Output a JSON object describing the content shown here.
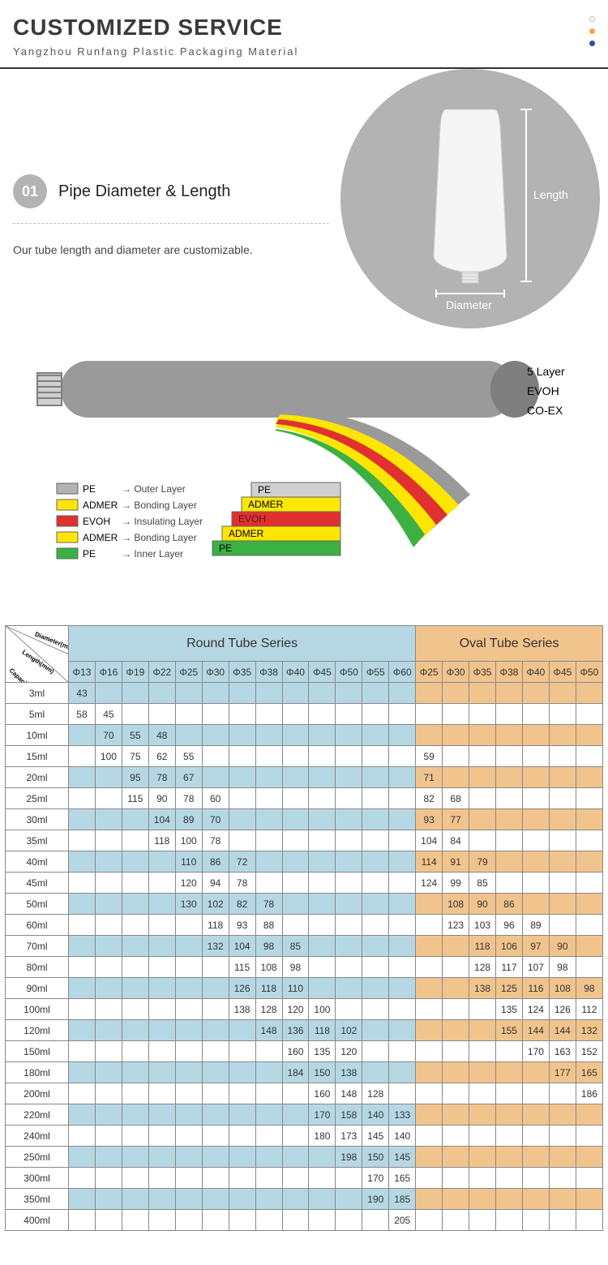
{
  "header": {
    "title": "CUSTOMIZED SERVICE",
    "subtitle": "Yangzhou Runfang Plastic Packaging Material",
    "dot_colors": [
      "#ffffff",
      "#f3a743",
      "#2a4ea7"
    ]
  },
  "section1": {
    "step_number": "01",
    "title": "Pipe Diameter & Length",
    "description": "Our tube length and diameter are customizable.",
    "labels": {
      "length": "Length",
      "diameter": "Diameter"
    },
    "colors": {
      "circle_bg": "#b3b3b3",
      "tube_fill": "#f2f2f2",
      "label_text": "#ffffff"
    }
  },
  "layers_diagram": {
    "right_labels": [
      "5 Layer",
      "EVOH",
      "CO-EX"
    ],
    "legend": [
      {
        "color": "#b3b3b3",
        "name": "PE",
        "desc": "Outer Layer"
      },
      {
        "color": "#ffe600",
        "name": "ADMER",
        "desc": "Bonding Layer"
      },
      {
        "color": "#e03030",
        "name": "EVOH",
        "desc": "Insulating Layer"
      },
      {
        "color": "#ffe600",
        "name": "ADMER",
        "desc": "Bonding Layer"
      },
      {
        "color": "#3cb043",
        "name": "PE",
        "desc": "Inner Layer"
      }
    ],
    "stack_labels": [
      "PE",
      "ADMER",
      "EVOH",
      "ADMER",
      "PE"
    ],
    "tube_color": "#9a9a9a"
  },
  "table": {
    "corner_labels": [
      "Diameter(mm)",
      "Length(mm)",
      "Capacity(ml)"
    ],
    "round_series_title": "Round Tube Series",
    "oval_series_title": "Oval Tube Series",
    "round_diameters": [
      "Φ13",
      "Φ16",
      "Φ19",
      "Φ22",
      "Φ25",
      "Φ30",
      "Φ35",
      "Φ38",
      "Φ40",
      "Φ45",
      "Φ50",
      "Φ55",
      "Φ60"
    ],
    "oval_diameters": [
      "Φ25",
      "Φ30",
      "Φ35",
      "Φ38",
      "Φ40",
      "Φ45",
      "Φ50"
    ],
    "colors": {
      "round_bg": "#b6d8e4",
      "oval_bg": "#f2c48d",
      "plain_bg": "#ffffff",
      "border": "#888888"
    },
    "rows": [
      {
        "cap": "3ml",
        "round": [
          "43",
          "",
          "",
          "",
          "",
          "",
          "",
          "",
          "",
          "",
          "",
          "",
          ""
        ],
        "oval": [
          "",
          "",
          "",
          "",
          "",
          "",
          ""
        ]
      },
      {
        "cap": "5ml",
        "round": [
          "58",
          "45",
          "",
          "",
          "",
          "",
          "",
          "",
          "",
          "",
          "",
          "",
          ""
        ],
        "oval": [
          "",
          "",
          "",
          "",
          "",
          "",
          ""
        ]
      },
      {
        "cap": "10ml",
        "round": [
          "",
          "70",
          "55",
          "48",
          "",
          "",
          "",
          "",
          "",
          "",
          "",
          "",
          ""
        ],
        "oval": [
          "",
          "",
          "",
          "",
          "",
          "",
          ""
        ]
      },
      {
        "cap": "15ml",
        "round": [
          "",
          "100",
          "75",
          "62",
          "55",
          "",
          "",
          "",
          "",
          "",
          "",
          "",
          ""
        ],
        "oval": [
          "59",
          "",
          "",
          "",
          "",
          "",
          ""
        ]
      },
      {
        "cap": "20ml",
        "round": [
          "",
          "",
          "95",
          "78",
          "67",
          "",
          "",
          "",
          "",
          "",
          "",
          "",
          ""
        ],
        "oval": [
          "71",
          "",
          "",
          "",
          "",
          "",
          ""
        ]
      },
      {
        "cap": "25ml",
        "round": [
          "",
          "",
          "115",
          "90",
          "78",
          "60",
          "",
          "",
          "",
          "",
          "",
          "",
          ""
        ],
        "oval": [
          "82",
          "68",
          "",
          "",
          "",
          "",
          ""
        ]
      },
      {
        "cap": "30ml",
        "round": [
          "",
          "",
          "",
          "104",
          "89",
          "70",
          "",
          "",
          "",
          "",
          "",
          "",
          ""
        ],
        "oval": [
          "93",
          "77",
          "",
          "",
          "",
          "",
          ""
        ]
      },
      {
        "cap": "35ml",
        "round": [
          "",
          "",
          "",
          "118",
          "100",
          "78",
          "",
          "",
          "",
          "",
          "",
          "",
          ""
        ],
        "oval": [
          "104",
          "84",
          "",
          "",
          "",
          "",
          ""
        ]
      },
      {
        "cap": "40ml",
        "round": [
          "",
          "",
          "",
          "",
          "110",
          "86",
          "72",
          "",
          "",
          "",
          "",
          "",
          ""
        ],
        "oval": [
          "114",
          "91",
          "79",
          "",
          "",
          "",
          ""
        ]
      },
      {
        "cap": "45ml",
        "round": [
          "",
          "",
          "",
          "",
          "120",
          "94",
          "78",
          "",
          "",
          "",
          "",
          "",
          ""
        ],
        "oval": [
          "124",
          "99",
          "85",
          "",
          "",
          "",
          ""
        ]
      },
      {
        "cap": "50ml",
        "round": [
          "",
          "",
          "",
          "",
          "130",
          "102",
          "82",
          "78",
          "",
          "",
          "",
          "",
          ""
        ],
        "oval": [
          "",
          "108",
          "90",
          "86",
          "",
          "",
          ""
        ]
      },
      {
        "cap": "60ml",
        "round": [
          "",
          "",
          "",
          "",
          "",
          "118",
          "93",
          "88",
          "",
          "",
          "",
          "",
          ""
        ],
        "oval": [
          "",
          "123",
          "103",
          "96",
          "89",
          "",
          ""
        ]
      },
      {
        "cap": "70ml",
        "round": [
          "",
          "",
          "",
          "",
          "",
          "132",
          "104",
          "98",
          "85",
          "",
          "",
          "",
          ""
        ],
        "oval": [
          "",
          "",
          "118",
          "106",
          "97",
          "90",
          ""
        ]
      },
      {
        "cap": "80ml",
        "round": [
          "",
          "",
          "",
          "",
          "",
          "",
          "115",
          "108",
          "98",
          "",
          "",
          "",
          ""
        ],
        "oval": [
          "",
          "",
          "128",
          "117",
          "107",
          "98",
          ""
        ]
      },
      {
        "cap": "90ml",
        "round": [
          "",
          "",
          "",
          "",
          "",
          "",
          "126",
          "118",
          "110",
          "",
          "",
          "",
          ""
        ],
        "oval": [
          "",
          "",
          "138",
          "125",
          "116",
          "108",
          "98"
        ]
      },
      {
        "cap": "100ml",
        "round": [
          "",
          "",
          "",
          "",
          "",
          "",
          "138",
          "128",
          "120",
          "100",
          "",
          "",
          ""
        ],
        "oval": [
          "",
          "",
          "",
          "135",
          "124",
          "126",
          "112"
        ]
      },
      {
        "cap": "120ml",
        "round": [
          "",
          "",
          "",
          "",
          "",
          "",
          "",
          "148",
          "136",
          "118",
          "102",
          "",
          ""
        ],
        "oval": [
          "",
          "",
          "",
          "155",
          "144",
          "144",
          "132"
        ]
      },
      {
        "cap": "150ml",
        "round": [
          "",
          "",
          "",
          "",
          "",
          "",
          "",
          "",
          "160",
          "135",
          "120",
          "",
          ""
        ],
        "oval": [
          "",
          "",
          "",
          "",
          "170",
          "163",
          "152"
        ]
      },
      {
        "cap": "180ml",
        "round": [
          "",
          "",
          "",
          "",
          "",
          "",
          "",
          "",
          "184",
          "150",
          "138",
          "",
          ""
        ],
        "oval": [
          "",
          "",
          "",
          "",
          "",
          "177",
          "165"
        ]
      },
      {
        "cap": "200ml",
        "round": [
          "",
          "",
          "",
          "",
          "",
          "",
          "",
          "",
          "",
          "160",
          "148",
          "128",
          ""
        ],
        "oval": [
          "",
          "",
          "",
          "",
          "",
          "",
          "186"
        ]
      },
      {
        "cap": "220ml",
        "round": [
          "",
          "",
          "",
          "",
          "",
          "",
          "",
          "",
          "",
          "170",
          "158",
          "140",
          "133"
        ],
        "oval": [
          "",
          "",
          "",
          "",
          "",
          "",
          ""
        ]
      },
      {
        "cap": "240ml",
        "round": [
          "",
          "",
          "",
          "",
          "",
          "",
          "",
          "",
          "",
          "180",
          "173",
          "145",
          "140"
        ],
        "oval": [
          "",
          "",
          "",
          "",
          "",
          "",
          ""
        ]
      },
      {
        "cap": "250ml",
        "round": [
          "",
          "",
          "",
          "",
          "",
          "",
          "",
          "",
          "",
          "",
          "198",
          "150",
          "145"
        ],
        "oval": [
          "",
          "",
          "",
          "",
          "",
          "",
          ""
        ]
      },
      {
        "cap": "300ml",
        "round": [
          "",
          "",
          "",
          "",
          "",
          "",
          "",
          "",
          "",
          "",
          "",
          "170",
          "165"
        ],
        "oval": [
          "",
          "",
          "",
          "",
          "",
          "",
          ""
        ]
      },
      {
        "cap": "350ml",
        "round": [
          "",
          "",
          "",
          "",
          "",
          "",
          "",
          "",
          "",
          "",
          "",
          "190",
          "185"
        ],
        "oval": [
          "",
          "",
          "",
          "",
          "",
          "",
          ""
        ]
      },
      {
        "cap": "400ml",
        "round": [
          "",
          "",
          "",
          "",
          "",
          "",
          "",
          "",
          "",
          "",
          "",
          "",
          "205"
        ],
        "oval": [
          "",
          "",
          "",
          "",
          "",
          "",
          ""
        ]
      }
    ]
  }
}
